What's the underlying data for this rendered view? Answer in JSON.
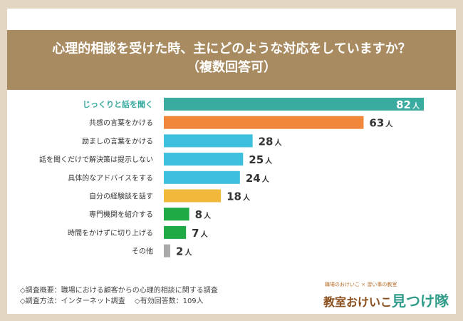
{
  "title": {
    "line1": "心理的相談を受けた時、主にどのような対応をしていますか？",
    "line2": "（複数回答可）"
  },
  "colors": {
    "background": "#e2d6c3",
    "title_band": "#a98b61",
    "teal": "#3aab9f",
    "orange": "#f0873a",
    "light_blue": "#3dbfde",
    "yellow": "#f2b83b",
    "green": "#1faa45",
    "gray": "#a9a9a9"
  },
  "chart_data": {
    "type": "bar",
    "orientation": "horizontal",
    "categories": [
      "じっくりと話を聞く",
      "共感の言葉をかける",
      "励ましの言葉をかける",
      "話を聞くだけで解決策は提示しない",
      "具体的なアドバイスをする",
      "自分の経験談を話す",
      "専門機関を紹介する",
      "時間をかけずに切り上げる",
      "その他"
    ],
    "values": [
      82,
      63,
      28,
      25,
      24,
      18,
      8,
      7,
      2
    ],
    "unit": "人",
    "bar_colors": [
      "#3aab9f",
      "#f0873a",
      "#3dbfde",
      "#3dbfde",
      "#3dbfde",
      "#f2b83b",
      "#1faa45",
      "#1faa45",
      "#a9a9a9"
    ],
    "label_colors": [
      "#3aab9f",
      "#333333",
      "#333333",
      "#333333",
      "#333333",
      "#333333",
      "#333333",
      "#333333",
      "#333333"
    ],
    "highlight_index": 0,
    "xlim": [
      0,
      82
    ],
    "grid": false,
    "legend": "none"
  },
  "footnotes": {
    "survey_outline": "◇調査概要：職場における顧客からの心理的相談に関する調査",
    "survey_method": "◇調査方法：インターネット調査",
    "valid_responses": "◇有効回答数：109人"
  },
  "brand": {
    "small_text": "職場のおけいこ × 習い事の教室",
    "main_text": "教室おけいこ",
    "accent_text": "見つけ隊"
  }
}
